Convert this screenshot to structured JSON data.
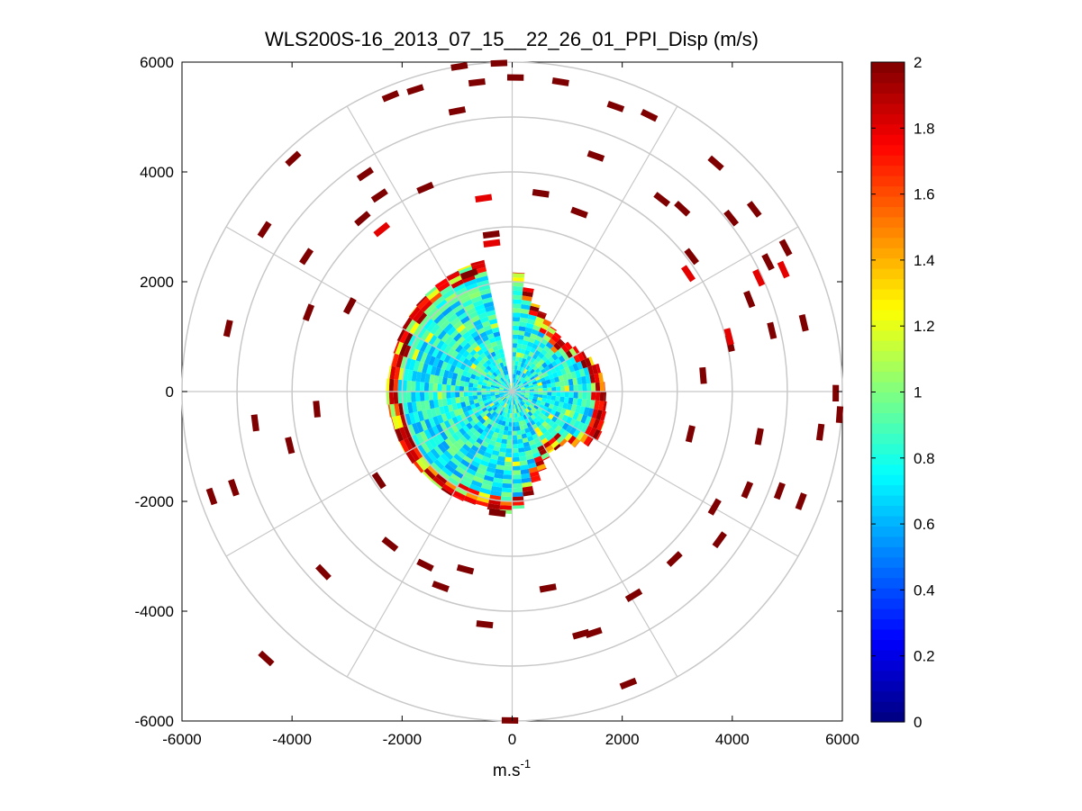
{
  "chart_data": {
    "type": "heatmap",
    "subtype": "polar-ppi",
    "title": "WLS200S-16_2013_07_15__22_26_01_PPI_Disp (m/s)",
    "xlabel": "m.s-1",
    "xlabel_base": "m.s",
    "xlabel_sup": "-1",
    "ylabel": "",
    "xlim": [
      -6000,
      6000
    ],
    "ylim": [
      -6000,
      6000
    ],
    "x_ticks": [
      -6000,
      -4000,
      -2000,
      0,
      2000,
      4000,
      6000
    ],
    "y_ticks": [
      6000,
      4000,
      2000,
      0,
      -2000,
      -4000,
      -6000
    ],
    "x_tick_labels": [
      "-6000",
      "-4000",
      "-2000",
      "0",
      "2000",
      "4000",
      "6000"
    ],
    "y_tick_labels": [
      "6000",
      "4000",
      "2000",
      "0",
      "-2000",
      "-4000",
      "-6000"
    ],
    "polar_grid_radii": [
      2000,
      3000,
      4000,
      5000,
      6000
    ],
    "polar_grid_angles_deg": [
      0,
      30,
      60,
      90,
      120,
      150,
      180,
      210,
      240,
      270,
      300,
      330
    ],
    "colorbar": {
      "min": 0,
      "max": 2,
      "ticks": [
        0,
        0.2,
        0.4,
        0.6,
        0.8,
        1,
        1.2,
        1.4,
        1.6,
        1.8,
        2
      ],
      "tick_labels": [
        "0",
        "0.2",
        "0.4",
        "0.6",
        "0.8",
        "1",
        "1.2",
        "1.4",
        "1.6",
        "1.8",
        "2"
      ],
      "colormap": "jet"
    },
    "dense_region": {
      "description": "dense scan data near the lidar, mostly 0.5-1.0 m/s, saturating to 2 m/s at the edge",
      "max_range_by_bearing_deg": [
        [
          0,
          2300
        ],
        [
          15,
          1650
        ],
        [
          30,
          1400
        ],
        [
          45,
          1300
        ],
        [
          60,
          1450
        ],
        [
          75,
          1650
        ],
        [
          90,
          1700
        ],
        [
          105,
          1750
        ],
        [
          120,
          1800
        ],
        [
          135,
          1350
        ],
        [
          150,
          1300
        ],
        [
          165,
          1700
        ],
        [
          180,
          2250
        ],
        [
          195,
          2150
        ],
        [
          210,
          2200
        ],
        [
          225,
          2200
        ],
        [
          240,
          2250
        ],
        [
          255,
          2250
        ],
        [
          270,
          2300
        ],
        [
          285,
          2250
        ],
        [
          300,
          2300
        ],
        [
          315,
          2350
        ],
        [
          330,
          2400
        ],
        [
          345,
          2450
        ],
        [
          360,
          2300
        ]
      ],
      "gap_bearing_deg": [
        349,
        359
      ]
    },
    "sparse_returns": {
      "description": "isolated far-range returns (x, y in m, value in m/s)",
      "points": [
        [
          -960,
          5920,
          2
        ],
        [
          -240,
          5980,
          2
        ],
        [
          -1760,
          5500,
          2
        ],
        [
          -2210,
          5380,
          2
        ],
        [
          -640,
          5630,
          2
        ],
        [
          -1000,
          5110,
          2
        ],
        [
          60,
          5720,
          2
        ],
        [
          880,
          5640,
          2
        ],
        [
          1880,
          5190,
          2
        ],
        [
          2490,
          5030,
          2
        ],
        [
          3700,
          4160,
          2
        ],
        [
          4400,
          3320,
          2
        ],
        [
          4970,
          2620,
          2
        ],
        [
          5300,
          1250,
          2
        ],
        [
          5950,
          -420,
          2
        ],
        [
          2720,
          3500,
          2
        ],
        [
          1520,
          4290,
          2
        ],
        [
          3090,
          3330,
          2
        ],
        [
          3980,
          3160,
          2
        ],
        [
          4650,
          2360,
          2
        ],
        [
          4310,
          1680,
          2
        ],
        [
          3960,
          880,
          2
        ],
        [
          3470,
          290,
          2
        ],
        [
          3240,
          -770,
          2
        ],
        [
          4490,
          -820,
          2
        ],
        [
          4270,
          -1790,
          2
        ],
        [
          3680,
          -2100,
          2
        ],
        [
          3770,
          -2700,
          2
        ],
        [
          4860,
          -1810,
          2
        ],
        [
          2950,
          -3050,
          2
        ],
        [
          2210,
          -3710,
          2
        ],
        [
          1250,
          -4420,
          2
        ],
        [
          2110,
          -5320,
          2
        ],
        [
          -40,
          -5990,
          2
        ],
        [
          -500,
          -4240,
          2
        ],
        [
          -1300,
          -3550,
          2
        ],
        [
          -1580,
          -3160,
          2
        ],
        [
          -2220,
          -2780,
          2
        ],
        [
          -3430,
          -3290,
          2
        ],
        [
          -4470,
          -4860,
          2
        ],
        [
          -5460,
          -1910,
          2
        ],
        [
          -5060,
          -1750,
          2
        ],
        [
          -4670,
          -570,
          2
        ],
        [
          -5160,
          1150,
          2
        ],
        [
          -3700,
          1440,
          2
        ],
        [
          -3740,
          2460,
          2
        ],
        [
          -4500,
          2950,
          2
        ],
        [
          -2720,
          3150,
          2
        ],
        [
          -2410,
          3570,
          2
        ],
        [
          -2670,
          3960,
          2
        ],
        [
          -3980,
          4240,
          2
        ],
        [
          -1580,
          3710,
          2
        ],
        [
          1220,
          3260,
          2
        ],
        [
          520,
          3610,
          2
        ],
        [
          -780,
          2140,
          2
        ],
        [
          -380,
          2860,
          2
        ],
        [
          3260,
          2460,
          2
        ],
        [
          4720,
          1110,
          2
        ],
        [
          5880,
          -30,
          2
        ],
        [
          5600,
          -740,
          2
        ],
        [
          5250,
          -2000,
          2
        ],
        [
          -2950,
          1560,
          2
        ],
        [
          -3550,
          -320,
          2
        ],
        [
          -4040,
          -980,
          2
        ],
        [
          -2420,
          -1620,
          2
        ],
        [
          -850,
          -3240,
          2
        ],
        [
          -270,
          -2210,
          2
        ],
        [
          1480,
          -4390,
          2
        ],
        [
          650,
          -3580,
          2
        ],
        [
          3200,
          2150,
          1.8
        ],
        [
          4480,
          2070,
          1.8
        ],
        [
          4930,
          2220,
          1.8
        ],
        [
          3940,
          1000,
          1.8
        ],
        [
          -520,
          3520,
          1.8
        ],
        [
          -370,
          2700,
          1.8
        ],
        [
          -2370,
          2950,
          1.8
        ]
      ]
    }
  }
}
